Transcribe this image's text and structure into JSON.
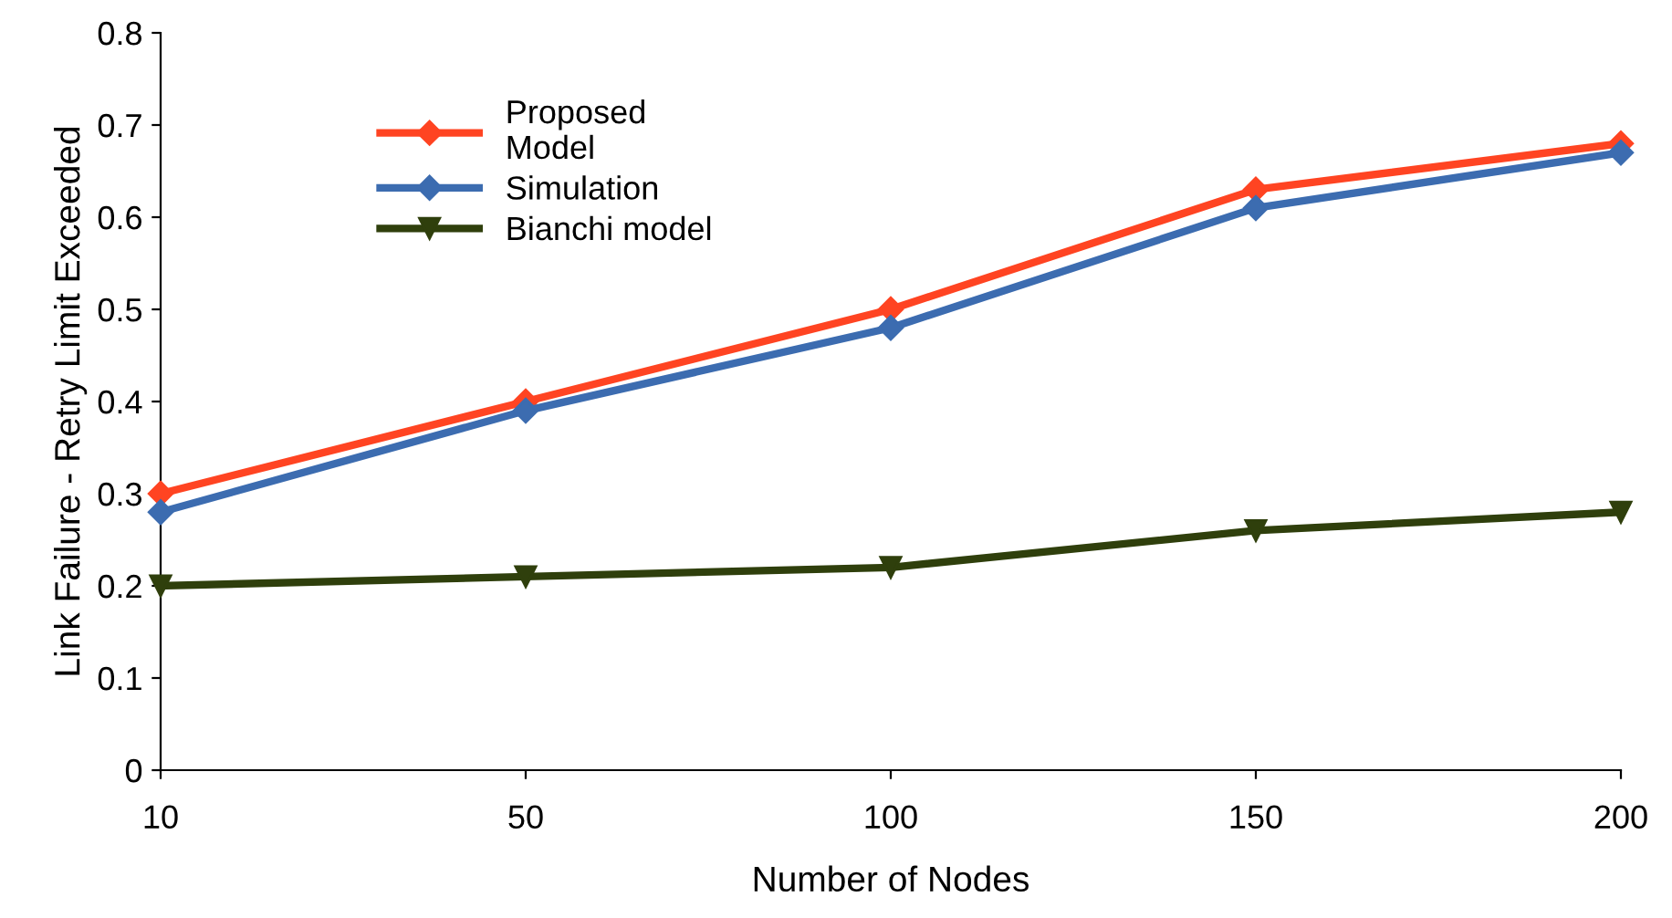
{
  "chart_data": {
    "type": "line",
    "xlabel": "Number of Nodes",
    "ylabel": "Link Failure - Retry Limit Exceeded",
    "categories": [
      "10",
      "50",
      "100",
      "150",
      "200"
    ],
    "series": [
      {
        "name": "Proposed\nModel",
        "color": "#ff4422",
        "marker": "diamond",
        "values": [
          0.3,
          0.4,
          0.5,
          0.63,
          0.68
        ]
      },
      {
        "name": "Simulation",
        "color": "#3c6cb0",
        "marker": "diamond",
        "values": [
          0.28,
          0.39,
          0.48,
          0.61,
          0.67
        ]
      },
      {
        "name": "Bianchi model",
        "color": "#2f3f0c",
        "marker": "triangle",
        "values": [
          0.2,
          0.21,
          0.22,
          0.26,
          0.28
        ]
      }
    ],
    "ylim": [
      0,
      0.8
    ],
    "yticks": [
      {
        "value": 0,
        "label": "0"
      },
      0.1,
      0.2,
      0.3,
      0.4,
      0.5,
      0.6,
      0.7,
      0.8
    ],
    "grid": false,
    "legend": "top left",
    "line_style": "solid"
  }
}
